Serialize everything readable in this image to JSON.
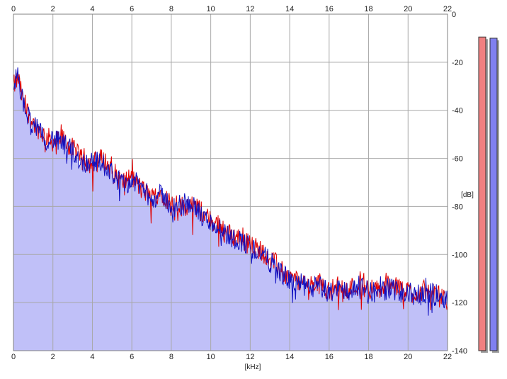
{
  "chart_data": {
    "type": "line",
    "xlabel": "[kHz]",
    "ylabel": "[dB]",
    "xlim": [
      0,
      22
    ],
    "ylim": [
      -140,
      0
    ],
    "x_ticks": [
      0,
      2,
      4,
      6,
      8,
      10,
      12,
      14,
      16,
      18,
      20,
      22
    ],
    "y_ticks": [
      0,
      -20,
      -40,
      -60,
      -80,
      -100,
      -120,
      -140
    ],
    "grid": true,
    "fill_color": "#c0c0f8",
    "series": [
      {
        "color": "#e00000",
        "x": [
          0,
          0.25,
          0.5,
          1,
          1.5,
          2,
          2.5,
          3,
          3.5,
          4,
          4.5,
          5,
          5.5,
          6,
          6.5,
          7,
          7.5,
          8,
          8.5,
          9,
          9.5,
          10,
          10.5,
          11,
          11.5,
          12,
          12.5,
          13,
          13.5,
          14,
          14.5,
          15,
          15.5,
          16,
          16.5,
          17,
          17.5,
          18,
          18.5,
          19,
          19.5,
          20,
          20.5,
          21,
          21.5,
          22
        ],
        "values": [
          -30,
          -27,
          -37,
          -45,
          -50,
          -53,
          -52,
          -56,
          -61,
          -62,
          -60,
          -65,
          -70,
          -68,
          -73,
          -76,
          -74,
          -79,
          -80,
          -79,
          -82,
          -86,
          -88,
          -92,
          -93,
          -96,
          -98,
          -101,
          -106,
          -110,
          -111,
          -113,
          -112,
          -115,
          -113,
          -114,
          -113,
          -114,
          -115,
          -113,
          -114,
          -115,
          -116,
          -115,
          -117,
          -120
        ]
      },
      {
        "color": "#1010c0",
        "x": [
          0,
          0.25,
          0.5,
          1,
          1.5,
          2,
          2.5,
          3,
          3.5,
          4,
          4.5,
          5,
          5.5,
          6,
          6.5,
          7,
          7.5,
          8,
          8.5,
          9,
          9.5,
          10,
          10.5,
          11,
          11.5,
          12,
          12.5,
          13,
          13.5,
          14,
          14.5,
          15,
          15.5,
          16,
          16.5,
          17,
          17.5,
          18,
          18.5,
          19,
          19.5,
          20,
          20.5,
          21,
          21.5,
          22
        ],
        "values": [
          -28,
          -26,
          -38,
          -46,
          -51,
          -52,
          -54,
          -57,
          -62,
          -61,
          -62,
          -66,
          -71,
          -69,
          -72,
          -77,
          -75,
          -80,
          -81,
          -78,
          -84,
          -87,
          -89,
          -93,
          -94,
          -97,
          -99,
          -103,
          -107,
          -111,
          -112,
          -114,
          -113,
          -116,
          -114,
          -115,
          -114,
          -115,
          -116,
          -114,
          -115,
          -116,
          -117,
          -116,
          -117,
          -118
        ]
      }
    ],
    "level_meters": [
      {
        "color": "#f08080",
        "value": -9.5
      },
      {
        "color": "#8080f0",
        "value": -10
      }
    ]
  }
}
